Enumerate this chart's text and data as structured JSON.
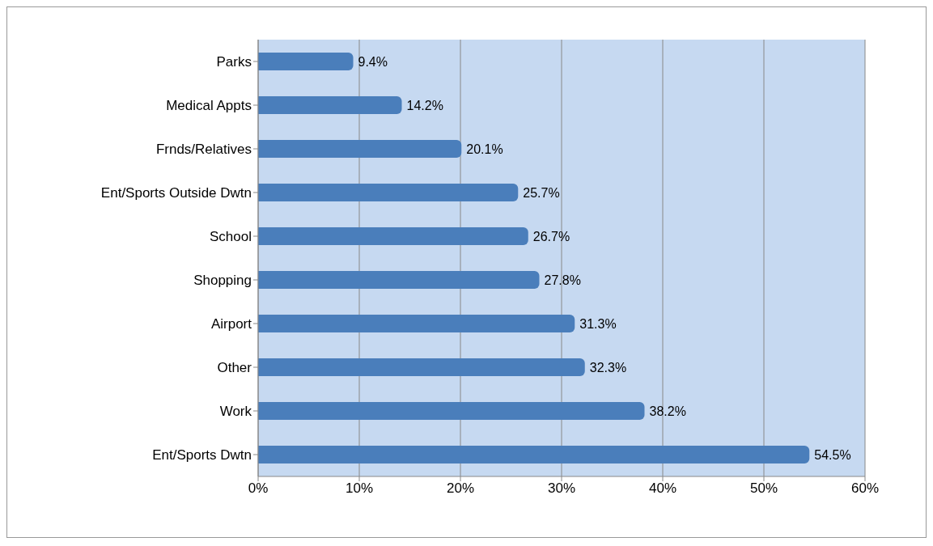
{
  "chart_data": {
    "type": "bar",
    "orientation": "horizontal",
    "categories": [
      "Parks",
      "Medical Appts",
      "Frnds/Relatives",
      "Ent/Sports Outside Dwtn",
      "School",
      "Shopping",
      "Airport",
      "Other",
      "Work",
      "Ent/Sports Dwtn"
    ],
    "values": [
      9.4,
      14.2,
      20.1,
      25.7,
      26.7,
      27.8,
      31.3,
      32.3,
      38.2,
      54.5
    ],
    "value_labels": [
      "9.4%",
      "14.2%",
      "20.1%",
      "25.7%",
      "26.7%",
      "27.8%",
      "31.3%",
      "32.3%",
      "38.2%",
      "54.5%"
    ],
    "color": "#4a7ebb",
    "xlim": [
      0,
      60
    ],
    "xticks": [
      {
        "value": 0,
        "label": "0%"
      },
      {
        "value": 10,
        "label": "10%"
      },
      {
        "value": 20,
        "label": "20%"
      },
      {
        "value": 30,
        "label": "30%"
      },
      {
        "value": 40,
        "label": "40%"
      },
      {
        "value": 50,
        "label": "50%"
      },
      {
        "value": 60,
        "label": "60%"
      }
    ],
    "grid": "x",
    "legend": false
  }
}
